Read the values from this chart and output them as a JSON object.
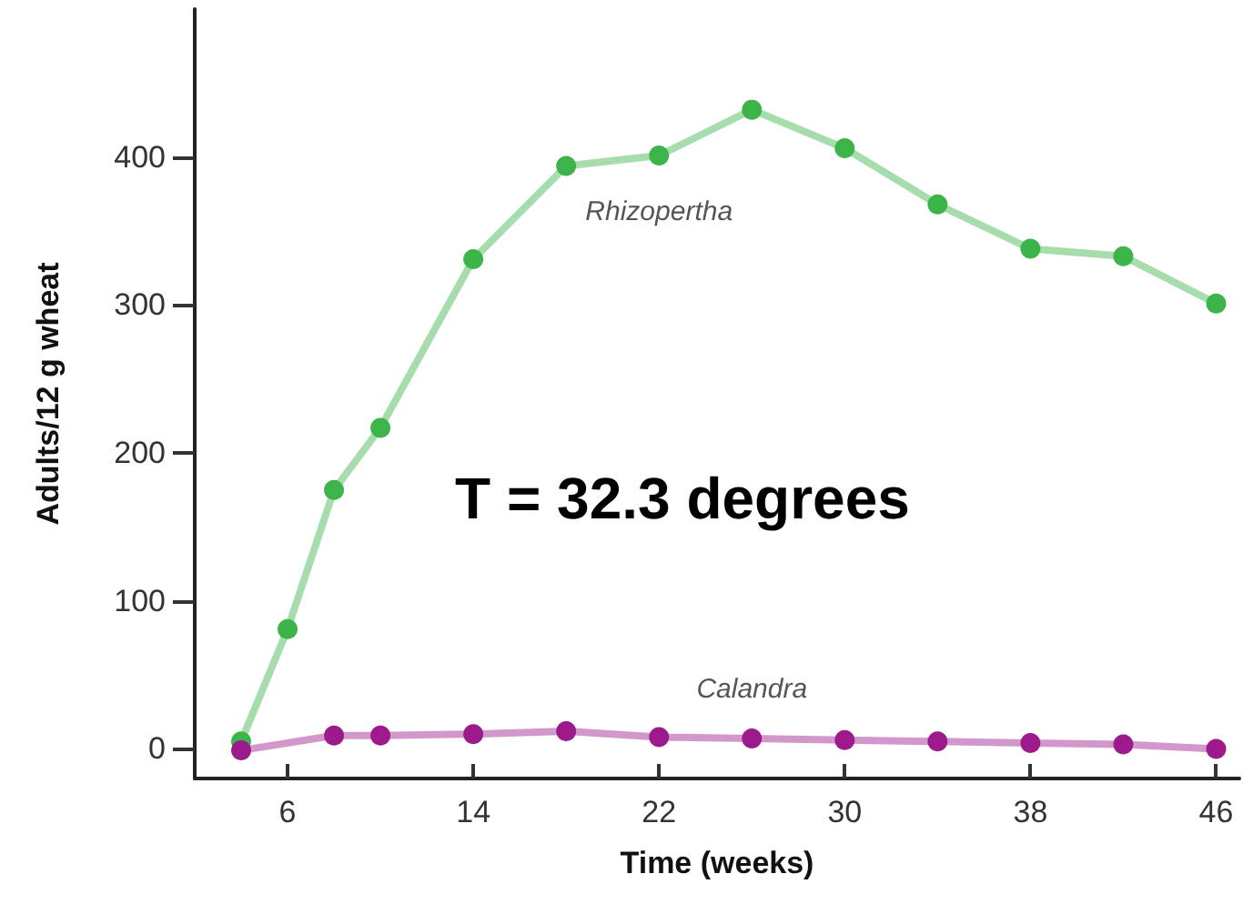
{
  "chart_data": {
    "type": "line",
    "xlabel": "Time (weeks)",
    "ylabel": "Adults/12 g wheat",
    "annotations": [
      "T = 32.3 degrees"
    ],
    "xlim": [
      2,
      47
    ],
    "ylim": [
      -20,
      500
    ],
    "xticks": [
      6,
      14,
      22,
      30,
      38,
      46
    ],
    "yticks": [
      0,
      100,
      200,
      300,
      400
    ],
    "marker": "circle",
    "grid": false,
    "legend": false,
    "series": [
      {
        "name": "Rhizopertha",
        "color": "#3cb44a",
        "x": [
          4,
          6,
          8,
          10,
          14,
          18,
          22,
          26,
          30,
          34,
          38,
          42,
          46
        ],
        "values": [
          5,
          81,
          175,
          217,
          331,
          394,
          401,
          432,
          406,
          368,
          338,
          333,
          301
        ]
      },
      {
        "name": "Calandra",
        "color": "#9c1a8c",
        "x": [
          4,
          8,
          10,
          14,
          18,
          22,
          26,
          30,
          34,
          38,
          42,
          46
        ],
        "values": [
          -1,
          9,
          9,
          10,
          12,
          8,
          7,
          6,
          5,
          4,
          3,
          0
        ]
      }
    ]
  }
}
